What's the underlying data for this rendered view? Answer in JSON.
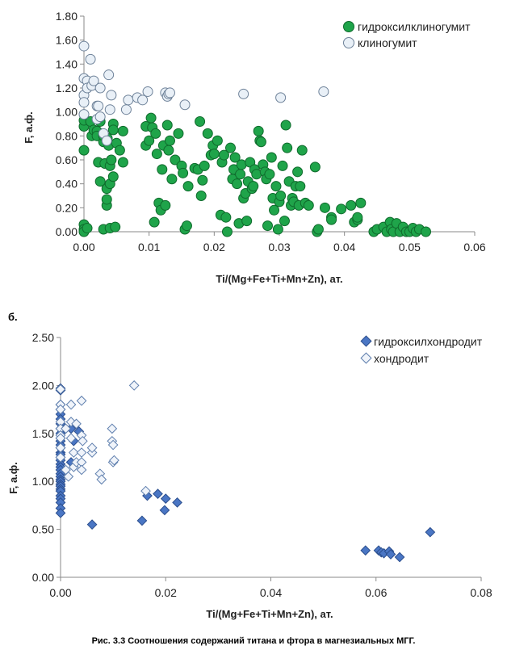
{
  "panel_b_label": "б.",
  "caption": "Рис. 3.3 Соотношения  содержаний титана  и фтора  в магнезиальных  МГГ.",
  "colors": {
    "hydroxyl_clinohumite_fill": "#1fa44a",
    "hydroxyl_clinohumite_stroke": "#0f6a2c",
    "clinohumite_fill": "#e9f0f7",
    "clinohumite_stroke": "#6d8198",
    "hydroxyl_chondrodite_fill": "#4a76c4",
    "hydroxyl_chondrodite_stroke": "#2b4e8d",
    "chondrodite_fill": "#f0f4fa",
    "chondrodite_stroke": "#5f7fae"
  },
  "chart_data": [
    {
      "type": "scatter",
      "title": "",
      "xlabel": "Ti/(Mg+Fe+Ti+Mn+Zn), ат.",
      "ylabel": "F, а.ф.",
      "xlim": [
        0,
        0.06
      ],
      "ylim": [
        0,
        1.8
      ],
      "xticks": [
        "0.00",
        "0.01",
        "0.02",
        "0.03",
        "0.04",
        "0.05",
        "0.06"
      ],
      "yticks": [
        "0.00",
        "0.20",
        "0.40",
        "0.60",
        "0.80",
        "1.00",
        "1.20",
        "1.40",
        "1.60",
        "1.80"
      ],
      "legend_position": "top-right",
      "grid": false,
      "series": [
        {
          "name": "гидроксилклиногумит",
          "marker": "circle-filled",
          "x": [
            0.0,
            0.0,
            0.0,
            0.0,
            0.0,
            0.0,
            0.0005,
            0.001,
            0.0012,
            0.0015,
            0.002,
            0.002,
            0.0022,
            0.0025,
            0.0025,
            0.003,
            0.003,
            0.003,
            0.0032,
            0.0035,
            0.0035,
            0.0035,
            0.0036,
            0.0038,
            0.004,
            0.004,
            0.004,
            0.0042,
            0.0045,
            0.0045,
            0.0045,
            0.0048,
            0.005,
            0.0055,
            0.006,
            0.006,
            0.0095,
            0.0095,
            0.01,
            0.0103,
            0.0105,
            0.0108,
            0.011,
            0.0112,
            0.0115,
            0.0118,
            0.012,
            0.0122,
            0.0125,
            0.0128,
            0.013,
            0.0132,
            0.0135,
            0.014,
            0.0145,
            0.015,
            0.0152,
            0.0155,
            0.0158,
            0.016,
            0.017,
            0.0175,
            0.0178,
            0.018,
            0.0182,
            0.0185,
            0.019,
            0.0195,
            0.0198,
            0.02,
            0.0205,
            0.021,
            0.0212,
            0.0215,
            0.0218,
            0.022,
            0.0225,
            0.0228,
            0.023,
            0.0232,
            0.0235,
            0.0238,
            0.024,
            0.0242,
            0.0245,
            0.0248,
            0.025,
            0.0252,
            0.0255,
            0.0258,
            0.026,
            0.0262,
            0.0265,
            0.0268,
            0.027,
            0.0272,
            0.0275,
            0.0278,
            0.028,
            0.0282,
            0.0285,
            0.0288,
            0.029,
            0.0292,
            0.0295,
            0.0298,
            0.03,
            0.0302,
            0.0305,
            0.0308,
            0.031,
            0.0312,
            0.0315,
            0.0318,
            0.032,
            0.0322,
            0.0325,
            0.0328,
            0.033,
            0.0332,
            0.0335,
            0.034,
            0.0345,
            0.0355,
            0.0358,
            0.036,
            0.037,
            0.038,
            0.038,
            0.0395,
            0.041,
            0.0415,
            0.042,
            0.042,
            0.0425,
            0.0445,
            0.045,
            0.046,
            0.0465,
            0.047,
            0.0472,
            0.0475,
            0.048,
            0.0485,
            0.049,
            0.0495,
            0.05,
            0.0505,
            0.051,
            0.0515,
            0.0525
          ],
          "y": [
            0.68,
            0.88,
            0.93,
            0.06,
            0.02,
            0.0,
            0.03,
            0.92,
            0.8,
            0.85,
            0.84,
            0.8,
            0.58,
            0.42,
            0.92,
            0.75,
            0.8,
            0.02,
            0.57,
            0.36,
            0.22,
            0.27,
            0.78,
            0.72,
            0.55,
            0.4,
            0.03,
            0.6,
            0.9,
            0.85,
            0.46,
            0.04,
            0.74,
            0.68,
            0.84,
            0.58,
            0.88,
            0.72,
            0.76,
            0.95,
            0.87,
            0.08,
            0.82,
            0.65,
            0.24,
            0.18,
            0.52,
            0.72,
            0.22,
            0.89,
            0.68,
            0.76,
            0.44,
            0.6,
            0.82,
            0.55,
            0.49,
            0.02,
            0.05,
            0.38,
            0.53,
            0.52,
            0.92,
            0.3,
            0.43,
            0.55,
            0.82,
            0.64,
            0.72,
            0.65,
            0.76,
            0.14,
            0.58,
            0.64,
            0.12,
            0.0,
            0.7,
            0.44,
            0.52,
            0.62,
            0.4,
            0.07,
            0.48,
            0.56,
            0.28,
            0.32,
            0.09,
            0.42,
            0.58,
            0.36,
            0.38,
            0.52,
            0.48,
            0.84,
            0.76,
            0.75,
            0.56,
            0.5,
            0.44,
            0.05,
            0.48,
            0.62,
            0.28,
            0.18,
            0.38,
            0.02,
            0.25,
            0.3,
            0.55,
            0.09,
            0.89,
            0.7,
            0.42,
            0.22,
            0.28,
            0.25,
            0.38,
            0.5,
            0.22,
            0.38,
            0.68,
            0.24,
            0.22,
            0.54,
            0.0,
            0.02,
            0.2,
            0.12,
            0.1,
            0.19,
            0.22,
            0.08,
            0.1,
            0.12,
            0.24,
            0.0,
            0.02,
            0.04,
            0.0,
            0.08,
            0.02,
            0.0,
            0.07,
            0.0,
            0.04,
            0.0,
            0.0,
            0.03,
            0.0,
            0.02,
            0.0
          ]
        },
        {
          "name": "клиногумит",
          "marker": "circle-open",
          "x": [
            0.0,
            0.0,
            0.0,
            0.0,
            0.0,
            0.0005,
            0.0005,
            0.001,
            0.0012,
            0.0015,
            0.002,
            0.002,
            0.0022,
            0.0025,
            0.0025,
            0.003,
            0.0035,
            0.0038,
            0.004,
            0.0042,
            0.0065,
            0.0068,
            0.0082,
            0.009,
            0.0098,
            0.0125,
            0.0128,
            0.013,
            0.0132,
            0.0155,
            0.0245,
            0.0302,
            0.0368
          ],
          "y": [
            1.55,
            1.28,
            1.14,
            1.08,
            0.98,
            1.26,
            1.2,
            1.44,
            1.22,
            1.26,
            1.05,
            0.94,
            1.05,
            1.2,
            0.96,
            0.82,
            0.76,
            1.31,
            1.02,
            1.14,
            1.02,
            1.1,
            1.12,
            1.1,
            1.17,
            1.16,
            1.13,
            1.15,
            1.16,
            1.06,
            1.15,
            1.12,
            1.17
          ]
        }
      ]
    },
    {
      "type": "scatter",
      "title": "",
      "xlabel": "Ti/(Mg+Fe+Ti+Mn+Zn), ат.",
      "ylabel": "F, а.ф.",
      "xlim": [
        0,
        0.08
      ],
      "ylim": [
        0,
        2.5
      ],
      "xticks": [
        "0.00",
        "0.02",
        "0.04",
        "0.06",
        "0.08"
      ],
      "yticks": [
        "0.00",
        "0.50",
        "1.00",
        "1.50",
        "2.00",
        "2.50"
      ],
      "legend_position": "top-right",
      "grid": false,
      "series": [
        {
          "name": "гидроксилхондродит",
          "marker": "diamond-filled",
          "x": [
            0.0,
            0.0,
            0.0,
            0.0,
            0.0,
            0.0,
            0.0,
            0.0,
            0.0,
            0.0,
            0.0,
            0.0,
            0.0,
            0.0,
            0.0,
            0.0,
            0.0,
            0.0,
            0.0,
            0.0,
            0.0,
            0.0,
            0.0,
            0.0,
            0.0,
            0.0,
            0.0,
            0.0,
            0.0,
            0.0,
            0.0,
            0.0,
            0.0,
            0.002,
            0.002,
            0.0025,
            0.0035,
            0.006,
            0.0155,
            0.0165,
            0.0185,
            0.0198,
            0.02,
            0.0222,
            0.058,
            0.0605,
            0.061,
            0.0615,
            0.0625,
            0.0628,
            0.0645,
            0.0703
          ],
          "y": [
            1.97,
            1.95,
            1.8,
            1.75,
            1.7,
            1.65,
            1.6,
            1.55,
            1.5,
            1.45,
            1.42,
            1.38,
            1.35,
            1.3,
            1.25,
            1.22,
            1.18,
            1.15,
            1.12,
            1.08,
            1.05,
            1.02,
            1.0,
            0.97,
            0.95,
            0.92,
            0.9,
            0.85,
            0.82,
            0.78,
            0.72,
            0.67,
            1.28,
            1.55,
            1.2,
            1.42,
            1.52,
            0.55,
            0.59,
            0.85,
            0.87,
            0.7,
            0.82,
            0.78,
            0.28,
            0.28,
            0.26,
            0.25,
            0.27,
            0.24,
            0.21,
            0.47
          ]
        },
        {
          "name": "хондродит",
          "marker": "diamond-open",
          "x": [
            0.0,
            0.0,
            0.0,
            0.0,
            0.0,
            0.0,
            0.0,
            0.0,
            0.0,
            0.001,
            0.001,
            0.0015,
            0.002,
            0.002,
            0.002,
            0.0025,
            0.0025,
            0.003,
            0.003,
            0.004,
            0.004,
            0.004,
            0.004,
            0.004,
            0.0042,
            0.006,
            0.006,
            0.0075,
            0.0078,
            0.0098,
            0.0098,
            0.01,
            0.01,
            0.0102,
            0.014,
            0.0162
          ],
          "y": [
            1.96,
            1.8,
            1.75,
            1.62,
            1.55,
            1.48,
            1.45,
            1.35,
            1.25,
            1.55,
            1.12,
            1.05,
            1.8,
            1.62,
            1.45,
            1.3,
            1.15,
            1.6,
            1.2,
            1.84,
            1.48,
            1.3,
            1.2,
            1.12,
            1.42,
            1.3,
            1.35,
            1.08,
            1.02,
            1.55,
            1.42,
            1.38,
            1.2,
            1.22,
            2.0,
            0.9
          ]
        }
      ]
    }
  ]
}
